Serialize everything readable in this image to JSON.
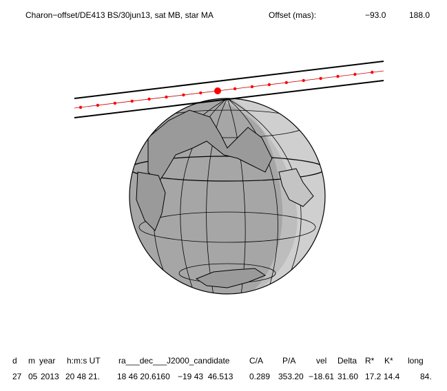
{
  "header": {
    "title": "Charon−offset/DE413 BS/30jun13, sat MB, star MA",
    "offset_label": "Offset (mas):",
    "offset_values": [
      "−93.0",
      "188.0"
    ]
  },
  "table": {
    "columns": [
      "d",
      "m",
      "year",
      "h:m:s UT",
      "ra___dec___J2000_candidate",
      "C/A",
      "P/A",
      "vel",
      "Delta",
      "R*",
      "K*",
      "long"
    ],
    "rows": [
      [
        "27",
        "05",
        "2013",
        "20 48 21.",
        "18 46 20.6160",
        "−19 43  46.513",
        "0.289",
        "353.20",
        "−18.61",
        "31.60",
        "17.2",
        "14.4",
        "84."
      ]
    ]
  }
}
